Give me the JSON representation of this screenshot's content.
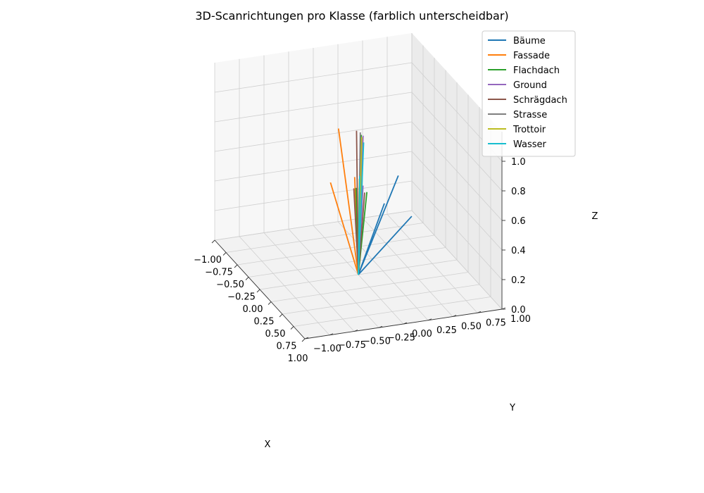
{
  "chart_data": {
    "type": "line",
    "projection": "3d",
    "title": "3D-Scanrichtungen pro Klasse (farblich unterscheidbar)",
    "xlabel": "X",
    "ylabel": "Y",
    "zlabel": "Z",
    "xlim": [
      -1.0,
      1.0
    ],
    "ylim": [
      -1.0,
      1.0
    ],
    "zlim": [
      0.0,
      1.0
    ],
    "xticks": [
      "−1.00",
      "−0.75",
      "−0.50",
      "−0.25",
      "0.00",
      "0.25",
      "0.50",
      "0.75",
      "1.00"
    ],
    "yticks": [
      "−1.00",
      "−0.75",
      "−0.50",
      "−0.25",
      "0.00",
      "0.25",
      "0.50",
      "0.75",
      "1.00"
    ],
    "zticks": [
      "0.0",
      "0.2",
      "0.4",
      "0.6",
      "0.8",
      "1.0"
    ],
    "legend_position": "top-right",
    "origin": [
      0,
      0,
      0
    ],
    "series": [
      {
        "name": "Bäume",
        "color": "#1f77b4",
        "vectors": [
          [
            0.45,
            0.2,
            0.8
          ],
          [
            0.42,
            0.35,
            0.5
          ],
          [
            0.25,
            0.15,
            0.55
          ]
        ]
      },
      {
        "name": "Fassade",
        "color": "#ff7f0e",
        "vectors": [
          [
            -0.55,
            0.05,
            0.8
          ],
          [
            -0.4,
            -0.1,
            0.5
          ],
          [
            -0.3,
            0.1,
            0.55
          ]
        ]
      },
      {
        "name": "Flachdach",
        "color": "#2ca02c",
        "vectors": [
          [
            0.02,
            0.02,
            0.95
          ],
          [
            0.08,
            0.05,
            0.58
          ],
          [
            -0.05,
            0.0,
            0.57
          ]
        ]
      },
      {
        "name": "Ground",
        "color": "#9467bd",
        "vectors": [
          [
            0.04,
            0.03,
            0.95
          ],
          [
            0.06,
            0.02,
            0.62
          ]
        ]
      },
      {
        "name": "Schrägdach",
        "color": "#8c564b",
        "vectors": [
          [
            -0.04,
            0.0,
            0.96
          ],
          [
            -0.1,
            0.0,
            0.55
          ],
          [
            0.03,
            0.05,
            0.56
          ]
        ]
      },
      {
        "name": "Strasse",
        "color": "#7f7f7f",
        "vectors": [
          [
            0.0,
            0.02,
            0.96
          ],
          [
            0.02,
            0.0,
            0.6
          ]
        ]
      },
      {
        "name": "Trottoir",
        "color": "#bcbd22",
        "vectors": [
          [
            0.01,
            0.03,
            0.93
          ],
          [
            -0.02,
            0.02,
            0.64
          ]
        ]
      },
      {
        "name": "Wasser",
        "color": "#17becf",
        "vectors": [
          [
            0.03,
            0.04,
            0.9
          ],
          [
            0.01,
            0.01,
            0.67
          ]
        ]
      }
    ]
  }
}
